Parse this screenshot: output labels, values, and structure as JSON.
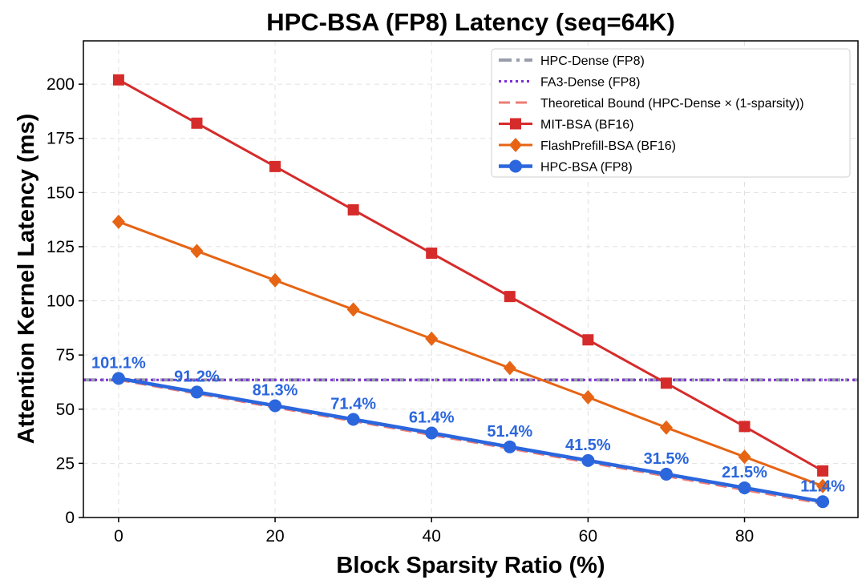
{
  "chart_data": {
    "type": "line",
    "title": "HPC-BSA (FP8) Latency (seq=64K)",
    "xlabel": "Block Sparsity Ratio (%)",
    "ylabel": "Attention Kernel Latency (ms)",
    "xlim": [
      -4.5,
      94.5
    ],
    "ylim": [
      0,
      220
    ],
    "xticks": [
      0,
      20,
      40,
      60,
      80
    ],
    "yticks": [
      0,
      25,
      50,
      75,
      100,
      125,
      150,
      175,
      200
    ],
    "grid": true,
    "legend_position": "top-right",
    "x": [
      0,
      10,
      20,
      30,
      40,
      50,
      60,
      70,
      80,
      90
    ],
    "reference_lines": [
      {
        "name": "HPC-Dense (FP8)",
        "y": 63.5,
        "color": "#9a9eab",
        "style": "dashdot"
      },
      {
        "name": "FA3-Dense (FP8)",
        "y": 63.5,
        "color": "#7b2fd8",
        "style": "dotted"
      }
    ],
    "series": [
      {
        "name": "Theoretical Bound (HPC-Dense × (1-sparsity))",
        "style": "dashed",
        "color": "#ee7c74",
        "values": [
          63.5,
          57.2,
          50.8,
          44.5,
          38.1,
          31.8,
          25.4,
          19.1,
          12.7,
          6.4
        ]
      },
      {
        "name": "MIT-BSA (BF16)",
        "marker": "square",
        "color": "#d62b2b",
        "values": [
          202,
          182,
          162,
          142,
          122,
          102,
          82,
          62,
          42,
          21.5
        ]
      },
      {
        "name": "FlashPrefill-BSA (BF16)",
        "marker": "diamond",
        "color": "#e66414",
        "values": [
          136.5,
          123,
          109.5,
          96,
          82.5,
          69,
          55.5,
          41.5,
          28,
          14.5
        ]
      },
      {
        "name": "HPC-BSA (FP8)",
        "marker": "circle",
        "color": "#2b66dd",
        "values": [
          64.2,
          57.9,
          51.6,
          45.3,
          39.0,
          32.6,
          26.3,
          20.0,
          13.7,
          7.3
        ]
      }
    ],
    "annotations": [
      "101.1%",
      "91.2%",
      "81.3%",
      "71.4%",
      "61.4%",
      "51.4%",
      "41.5%",
      "31.5%",
      "21.5%",
      "11.4%"
    ]
  }
}
